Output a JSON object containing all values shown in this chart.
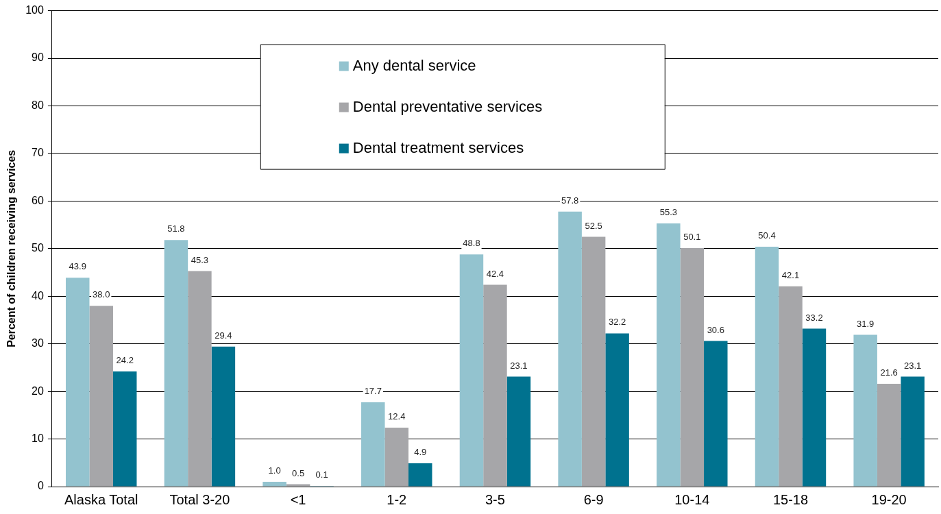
{
  "chart_data": {
    "type": "bar",
    "ylabel": "Percent of children receiving services",
    "categories": [
      "Alaska Total",
      "Total 3-20",
      "<1",
      "1-2",
      "3-5",
      "6-9",
      "10-14",
      "15-18",
      "19-20"
    ],
    "series": [
      {
        "name": "Any dental service",
        "color": "#93c3cf",
        "values": [
          43.9,
          51.8,
          1.0,
          17.7,
          48.8,
          57.8,
          55.3,
          50.4,
          31.9
        ],
        "value_labels": [
          "43.9",
          "51.8",
          "1.0",
          "17.7",
          "48.8",
          "57.8",
          "55.3",
          "50.4",
          "31.9"
        ]
      },
      {
        "name": "Dental preventative services",
        "color": "#a6a6a9",
        "values": [
          38.0,
          45.3,
          0.5,
          12.4,
          42.4,
          52.5,
          50.1,
          42.1,
          21.6
        ],
        "value_labels": [
          "38.0",
          "45.3",
          "0.5",
          "12.4",
          "42.4",
          "52.5",
          "50.1",
          "42.1",
          "21.6"
        ]
      },
      {
        "name": "Dental treatment services",
        "color": "#00728f",
        "values": [
          24.2,
          29.4,
          0.1,
          4.9,
          23.1,
          32.2,
          30.6,
          33.2,
          23.1
        ],
        "value_labels": [
          "24.2",
          "29.4",
          "0.1",
          "4.9",
          "23.1",
          "32.2",
          "30.6",
          "33.2",
          "23.1"
        ]
      }
    ],
    "ylim": [
      0,
      100
    ],
    "yticks": [
      0,
      10,
      20,
      30,
      40,
      50,
      60,
      70,
      80,
      90,
      100
    ],
    "grid": "y",
    "legend": "top"
  }
}
